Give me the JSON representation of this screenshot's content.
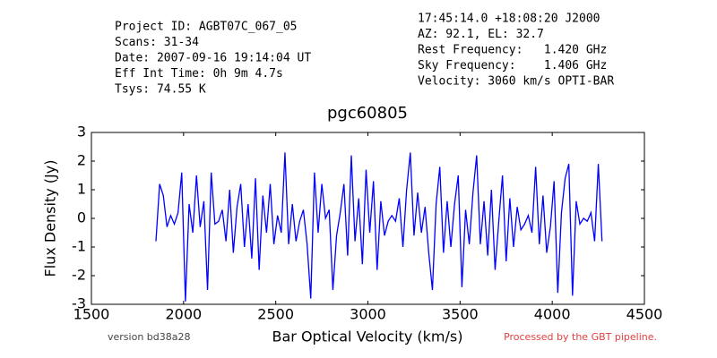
{
  "chart_data": {
    "type": "line",
    "title": "pgc60805",
    "x_label": "Bar Optical Velocity (km/s)",
    "y_label": "Flux Density (Jy)",
    "info_left": [
      "Project ID: AGBT07C_067_05",
      "Scans: 31-34",
      "Date: 2007-09-16 19:14:04 UT",
      "Eff Int Time: 0h 9m 4.7s",
      "Tsys: 74.55 K"
    ],
    "info_right": [
      "17:45:14.0 +18:08:20 J2000",
      "AZ: 92.1, EL: 32.7",
      "Rest Frequency:   1.420 GHz",
      "Sky Frequency:    1.406 GHz",
      "Velocity: 3060 km/s OPTI-BAR"
    ],
    "footer_left": "version bd38a28",
    "footer_right": "Processed by the GBT pipeline.",
    "xlim": [
      1500,
      4500
    ],
    "xticks": [
      1500,
      2000,
      2500,
      3000,
      3500,
      4000,
      4500
    ],
    "ylim": [
      -3,
      3
    ],
    "yticks": [
      -3,
      -2,
      -1,
      0,
      1,
      2,
      3
    ],
    "x": [
      1850,
      1870,
      1890,
      1910,
      1930,
      1950,
      1970,
      1990,
      2010,
      2030,
      2050,
      2070,
      2090,
      2110,
      2130,
      2150,
      2170,
      2190,
      2210,
      2230,
      2250,
      2270,
      2290,
      2310,
      2330,
      2350,
      2370,
      2390,
      2410,
      2430,
      2450,
      2470,
      2490,
      2510,
      2530,
      2550,
      2570,
      2590,
      2610,
      2630,
      2650,
      2670,
      2690,
      2710,
      2730,
      2750,
      2770,
      2790,
      2810,
      2830,
      2850,
      2870,
      2890,
      2910,
      2930,
      2950,
      2970,
      2990,
      3010,
      3030,
      3050,
      3070,
      3090,
      3110,
      3130,
      3150,
      3170,
      3190,
      3210,
      3230,
      3250,
      3270,
      3290,
      3310,
      3330,
      3350,
      3370,
      3390,
      3410,
      3430,
      3450,
      3470,
      3490,
      3510,
      3530,
      3550,
      3570,
      3590,
      3610,
      3630,
      3650,
      3670,
      3690,
      3710,
      3730,
      3750,
      3770,
      3790,
      3810,
      3830,
      3850,
      3870,
      3890,
      3910,
      3930,
      3950,
      3970,
      3990,
      4010,
      4030,
      4050,
      4070,
      4090,
      4110,
      4130,
      4150,
      4170,
      4190,
      4210,
      4230,
      4250,
      4270
    ],
    "series": [
      {
        "name": "pgc60805",
        "color": "#0000ff",
        "values": [
          -0.8,
          1.2,
          0.8,
          -0.3,
          0.1,
          -0.2,
          0.2,
          1.6,
          -2.9,
          0.5,
          -0.5,
          1.5,
          -0.3,
          0.6,
          -2.5,
          1.6,
          -0.2,
          -0.1,
          0.3,
          -0.8,
          1.0,
          -1.2,
          0.4,
          1.2,
          -1.0,
          0.5,
          -1.4,
          1.4,
          -1.8,
          0.8,
          -0.5,
          1.2,
          -0.9,
          0.1,
          -0.5,
          2.3,
          -0.9,
          0.5,
          -0.8,
          -0.1,
          0.3,
          -0.9,
          -2.8,
          1.6,
          -0.5,
          1.2,
          0.0,
          0.3,
          -2.5,
          -0.6,
          0.2,
          1.2,
          -1.3,
          2.2,
          -0.8,
          0.7,
          -1.6,
          1.7,
          -0.5,
          1.3,
          -1.8,
          0.6,
          -0.6,
          -0.1,
          0.1,
          -0.1,
          0.7,
          -1.0,
          1.0,
          2.3,
          -0.6,
          0.9,
          -0.5,
          0.4,
          -1.2,
          -2.5,
          0.5,
          1.8,
          -1.2,
          0.6,
          -1.0,
          0.5,
          1.5,
          -2.4,
          0.3,
          -0.9,
          0.9,
          2.2,
          -0.9,
          0.6,
          -1.3,
          1.0,
          -1.8,
          -0.1,
          1.5,
          -1.5,
          0.7,
          -1.0,
          0.4,
          -0.4,
          -0.2,
          0.1,
          -0.5,
          1.8,
          -0.9,
          0.8,
          -1.2,
          -0.3,
          1.3,
          -2.6,
          0.2,
          1.4,
          1.9,
          -2.7,
          0.6,
          -0.2,
          0.0,
          -0.1,
          0.2,
          -0.8,
          1.9,
          -0.8
        ]
      }
    ]
  }
}
